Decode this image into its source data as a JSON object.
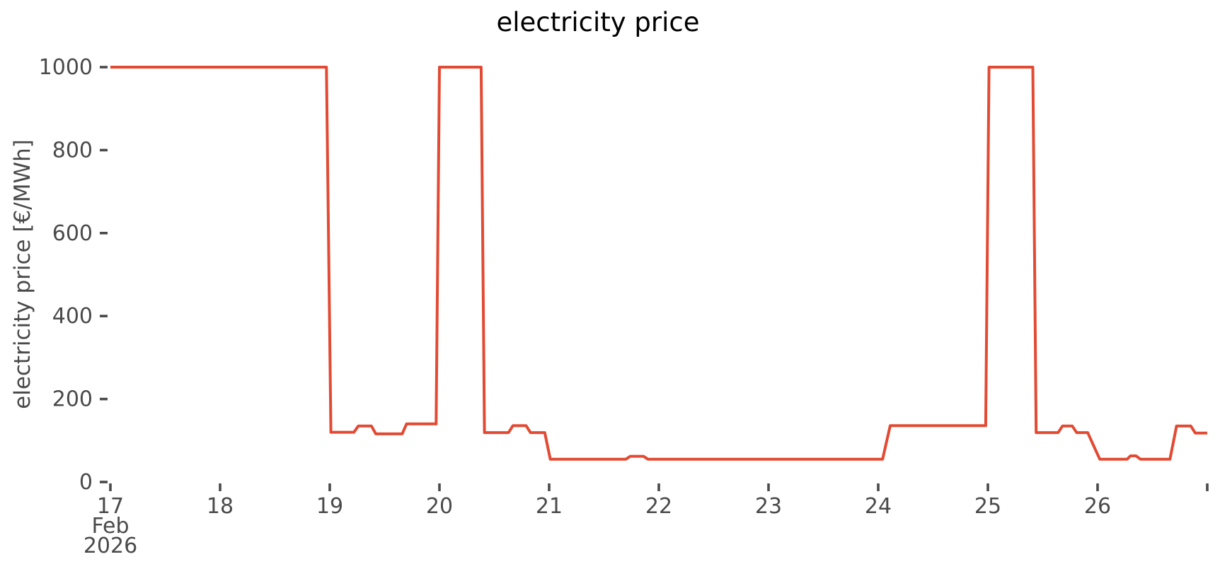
{
  "title": "electricity price",
  "colors": {
    "line": "#E24A33",
    "tick_text": "#4a4a4a",
    "title_text": "#000000",
    "background": "#ffffff"
  },
  "chart_data": {
    "type": "line",
    "title": "electricity price",
    "xlabel": "",
    "ylabel": "electricity price [€/MWh]",
    "grid": false,
    "legend": null,
    "line_color": "#E24A33",
    "line_width": 4,
    "ylim": [
      0,
      1050
    ],
    "xlim": [
      17,
      27
    ],
    "y_ticks": [
      0,
      200,
      400,
      600,
      800,
      1000
    ],
    "y_tick_labels": [
      "0",
      "200",
      "400",
      "600",
      "800",
      "1000"
    ],
    "x_tick_days": [
      17,
      18,
      19,
      20,
      21,
      22,
      23,
      24,
      25,
      26,
      27
    ],
    "x_tick_labels": [
      "17",
      "18",
      "19",
      "20",
      "21",
      "22",
      "23",
      "24",
      "25",
      "26",
      ""
    ],
    "x_offset_lines": [
      "Feb",
      "2026"
    ],
    "x_unit": "day of month",
    "y_unit": "€/MWh",
    "series": [
      {
        "name": "electricity price",
        "points": [
          [
            17.0,
            1000
          ],
          [
            18.97,
            1000
          ],
          [
            19.01,
            120
          ],
          [
            19.22,
            120
          ],
          [
            19.26,
            135
          ],
          [
            19.38,
            135
          ],
          [
            19.42,
            116
          ],
          [
            19.66,
            116
          ],
          [
            19.7,
            140
          ],
          [
            19.97,
            140
          ],
          [
            20.0,
            1000
          ],
          [
            20.38,
            1000
          ],
          [
            20.41,
            119
          ],
          [
            20.63,
            119
          ],
          [
            20.67,
            136
          ],
          [
            20.79,
            136
          ],
          [
            20.83,
            119
          ],
          [
            20.96,
            119
          ],
          [
            21.01,
            55
          ],
          [
            21.7,
            55
          ],
          [
            21.74,
            62
          ],
          [
            21.86,
            62
          ],
          [
            21.9,
            55
          ],
          [
            24.04,
            55
          ],
          [
            24.11,
            136
          ],
          [
            24.98,
            136
          ],
          [
            25.01,
            1000
          ],
          [
            25.41,
            1000
          ],
          [
            25.44,
            119
          ],
          [
            25.64,
            119
          ],
          [
            25.68,
            135
          ],
          [
            25.77,
            135
          ],
          [
            25.81,
            119
          ],
          [
            25.91,
            119
          ],
          [
            26.02,
            55
          ],
          [
            26.27,
            55
          ],
          [
            26.3,
            63
          ],
          [
            26.35,
            63
          ],
          [
            26.39,
            55
          ],
          [
            26.66,
            55
          ],
          [
            26.72,
            135
          ],
          [
            26.85,
            135
          ],
          [
            26.89,
            118
          ],
          [
            27.0,
            118
          ]
        ]
      }
    ]
  }
}
